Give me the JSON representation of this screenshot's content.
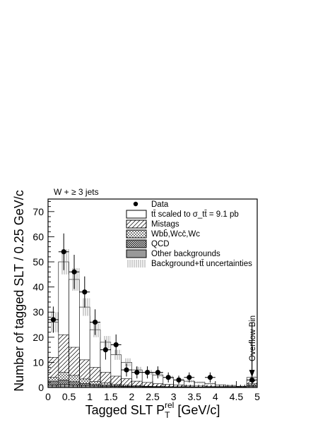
{
  "chart_data": {
    "type": "histogram",
    "corner_label": "W + ≥ 3 jets",
    "xlabel": "Tagged SLT P_T^rel [GeV/c]",
    "ylabel": "Number of tagged SLT / 0.25 GeV/c",
    "xlim": [
      0,
      5
    ],
    "ylim": [
      0,
      75
    ],
    "xticks": [
      "0",
      "0.5",
      "1",
      "1.5",
      "2",
      "2.5",
      "3",
      "3.5",
      "4",
      "4.5",
      "5"
    ],
    "yticks": [
      "0",
      "10",
      "20",
      "30",
      "40",
      "50",
      "60",
      "70"
    ],
    "bin_edges": [
      0,
      0.25,
      0.5,
      0.75,
      1.0,
      1.25,
      1.5,
      1.75,
      2.0,
      2.25,
      2.5,
      2.75,
      3.0,
      3.25,
      3.5,
      3.75,
      4.0,
      4.25,
      4.5,
      4.75,
      5.0
    ],
    "legend": {
      "data": "Data",
      "ttbar": "tt̄ scaled to σ_tt̄ = 9.1 pb",
      "mistags": "Mistags",
      "wbb": "Wbb̄,Wcc̄,Wc",
      "qcd": "QCD",
      "other": "Other backgrounds",
      "uncert": "Background+tt̄ uncertainties"
    },
    "overflow_label": "Overflow Bin",
    "stack_totals": {
      "other": [
        1.0,
        1.3,
        1.0,
        0.8,
        0.6,
        0.5,
        0.4,
        0.3,
        0.3,
        0.2,
        0.2,
        0.2,
        0.1,
        0.1,
        0.1,
        0.1,
        0.1,
        0.1,
        0.1,
        0.5
      ],
      "qcd": [
        2.5,
        3.0,
        2.3,
        1.6,
        1.2,
        0.9,
        0.7,
        0.5,
        0.4,
        0.3,
        0.3,
        0.3,
        0.2,
        0.2,
        0.2,
        0.2,
        0.2,
        0.2,
        0.2,
        1.0
      ],
      "wbb": [
        4.0,
        6.0,
        4.8,
        3.4,
        2.4,
        1.8,
        1.2,
        0.9,
        0.7,
        0.5,
        0.4,
        0.3,
        0.3,
        0.3,
        0.2,
        0.2,
        0.2,
        0.2,
        0.2,
        1.5
      ],
      "mistags": [
        12.0,
        21.0,
        16.0,
        11.0,
        8.0,
        6.0,
        4.5,
        3.5,
        2.5,
        2.0,
        1.5,
        1.2,
        1.0,
        0.8,
        0.6,
        0.5,
        0.4,
        0.4,
        0.3,
        3.0
      ],
      "ttbar": [
        26,
        50,
        43,
        32,
        23,
        18,
        13,
        10,
        7,
        6,
        5,
        4,
        3,
        2.5,
        2,
        1.5,
        1.0,
        0.8,
        0.5,
        4.0
      ]
    },
    "data_points": {
      "x": [
        0.125,
        0.375,
        0.625,
        0.875,
        1.125,
        1.375,
        1.625,
        1.875,
        2.125,
        2.375,
        2.625,
        2.875,
        3.125,
        3.375,
        3.875,
        4.875
      ],
      "y": [
        27,
        54,
        46,
        38,
        26,
        15,
        17,
        7,
        6,
        6,
        6,
        4,
        3,
        4,
        4,
        3
      ],
      "yerr": [
        5.2,
        7.3,
        6.8,
        6.2,
        5.1,
        3.9,
        4.1,
        2.6,
        2.4,
        2.4,
        2.4,
        2.0,
        1.7,
        2.0,
        2.0,
        1.7
      ]
    },
    "uncertainty_halfwidth": [
      4,
      5,
      4.5,
      3.5,
      3,
      2.5,
      2,
      1.6,
      1.2,
      1,
      0.8,
      0.7,
      0.6,
      0.5,
      0.4,
      0.4,
      0.3,
      0.3,
      0.3,
      0.6
    ]
  }
}
